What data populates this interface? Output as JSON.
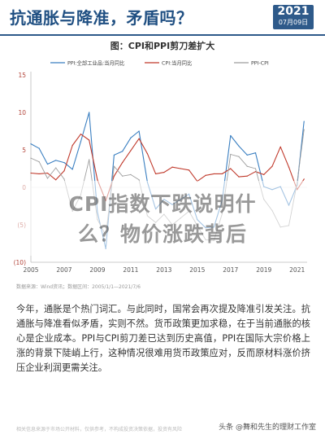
{
  "header": {
    "headline": "抗通胀与降准，矛盾吗？",
    "date_year": "2021",
    "date_md": "07月09日"
  },
  "overlay": {
    "line1": "CPI指数下跌说明什",
    "line2": "么？物价涨跌背后"
  },
  "source_note": "数据来源：Wind资讯；数据区间：2005/1/1—2021/7/6",
  "body_text": "今年，通胀是个热门词汇。与此同时，国常会再次提及降准引发关注。抗通胀与降准看似矛盾，实则不然。货币政策更加求稳，在于当前通胀的核心是企业成本。PPI与CPI剪刀差已达到历史高值，PPI在国际大宗价格上涨的背景下陡峭上行，这种情况很难用货币政策应对，反而原材料涨价挤压企业利润更需关注。",
  "disclaimer": "相关信息来源于市场公开材料，仅供参考，不构成投资决策依据，投资有风险",
  "watermark": "头条 @舞和先生的理财工作室",
  "colors": {
    "ppi": "#3a7fc1",
    "cpi": "#c0392b",
    "diff": "#9e9e9e",
    "header_blue": "#1f4f82"
  },
  "chart_data": {
    "type": "line",
    "title": "图：CPI和PPI剪刀差扩大",
    "x": [
      "2005-01",
      "2005-07",
      "2006-01",
      "2006-07",
      "2007-01",
      "2007-07",
      "2008-01",
      "2008-07",
      "2009-01",
      "2009-07",
      "2010-01",
      "2010-07",
      "2011-01",
      "2011-07",
      "2012-01",
      "2012-07",
      "2013-01",
      "2013-07",
      "2014-01",
      "2014-07",
      "2015-01",
      "2015-07",
      "2016-01",
      "2016-07",
      "2017-01",
      "2017-07",
      "2018-01",
      "2018-07",
      "2019-01",
      "2019-07",
      "2020-01",
      "2020-07",
      "2021-01",
      "2021-06"
    ],
    "series": [
      {
        "name": "PPI:全部工业品:当月同比",
        "values": [
          5.8,
          5.2,
          3.1,
          3.6,
          3.3,
          2.4,
          6.1,
          10.0,
          -3.3,
          -8.2,
          4.3,
          4.8,
          6.6,
          7.5,
          0.7,
          -2.9,
          -1.6,
          -2.3,
          -1.6,
          -0.9,
          -4.3,
          -5.4,
          -5.3,
          -1.7,
          6.9,
          5.5,
          4.3,
          4.6,
          0.1,
          -0.3,
          0.1,
          -2.4,
          0.3,
          8.8
        ]
      },
      {
        "name": "CPI:当月同比",
        "values": [
          1.9,
          1.8,
          1.9,
          1.0,
          2.2,
          5.6,
          7.1,
          6.3,
          1.0,
          -1.8,
          1.5,
          3.3,
          4.9,
          6.5,
          4.5,
          1.8,
          2.0,
          2.7,
          2.5,
          2.3,
          0.8,
          1.6,
          1.8,
          1.8,
          2.5,
          1.4,
          1.5,
          2.1,
          1.7,
          2.8,
          5.4,
          2.7,
          -0.3,
          1.1
        ]
      },
      {
        "name": "PPI-CPI",
        "values": [
          3.9,
          3.4,
          1.2,
          2.6,
          1.1,
          -3.2,
          -1.0,
          3.7,
          -4.3,
          -6.4,
          2.8,
          1.5,
          1.7,
          1.0,
          -3.8,
          -4.7,
          -3.6,
          -5.0,
          -4.1,
          -3.2,
          -5.1,
          -7.0,
          -7.1,
          -3.5,
          4.4,
          4.1,
          2.8,
          2.5,
          -1.6,
          -3.1,
          -5.3,
          -5.1,
          0.6,
          7.7
        ]
      }
    ],
    "xticks": [
      "2005",
      "2007",
      "2009",
      "2011",
      "2013",
      "2015",
      "2017",
      "2019",
      "2021"
    ],
    "yticks": [
      "15",
      "10",
      "5",
      "0",
      "(5)",
      "(10)"
    ],
    "ylim": [
      -10,
      15
    ],
    "grid": false,
    "legend": "top"
  }
}
